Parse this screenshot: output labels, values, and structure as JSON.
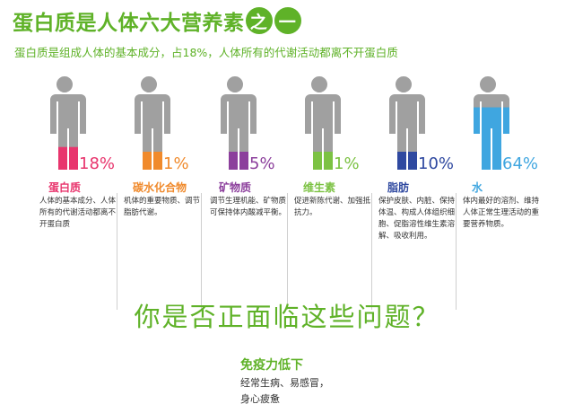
{
  "header": {
    "title_main": "蛋白质是人体六大营养素",
    "title_circle1": "之",
    "title_circle2": "一",
    "subtitle": "蛋白质是组成人体的基本成分，占18%，人体所有的代谢活动都离不开蛋白质"
  },
  "nutrients": [
    {
      "name": "蛋白质",
      "percent": "18%",
      "fill": 0.18,
      "color": "#e8356d",
      "desc": "人体的基本成分、人体所有的代谢活动都离不开蛋白质"
    },
    {
      "name": "碳水化合物",
      "percent": "1%",
      "fill": 0.01,
      "color": "#f08a2c",
      "desc": "机体的重要物质、调节脂肪代谢。"
    },
    {
      "name": "矿物质",
      "percent": "5%",
      "fill": 0.05,
      "color": "#8c3f9c",
      "desc": "调节生理机能、矿物质可保持体内酸减平衡。"
    },
    {
      "name": "维生素",
      "percent": "1%",
      "fill": 0.01,
      "color": "#7cc243",
      "desc": "促进新陈代谢、加强抵抗力。"
    },
    {
      "name": "脂肪",
      "percent": "10%",
      "fill": 0.1,
      "color": "#2f49a0",
      "desc": "保护皮肤、内脏、保持体温、构成人体组织细胞、促脂溶性维生素溶解、吸收利用。"
    },
    {
      "name": "水",
      "percent": "64%",
      "fill": 0.64,
      "color": "#3fa6e0",
      "desc": "体内最好的溶剂、维持人体正常生理活动的重要营养物质。"
    }
  ],
  "question": "你是否正面临这些问题？",
  "issue": {
    "title": "免疫力低下",
    "line1": "经常生病、易感冒，",
    "line2": "身心疲惫"
  },
  "colors": {
    "accent_green": "#5fb228",
    "figure_gray": "#a0a0a0"
  }
}
